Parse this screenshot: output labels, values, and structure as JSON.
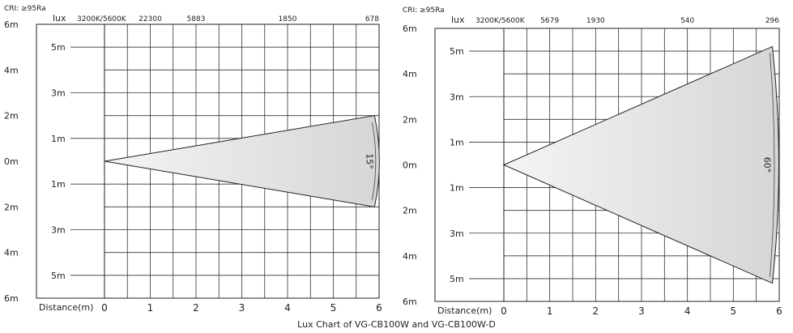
{
  "caption": "Lux Chart of VG-CB100W and VG-CB100W-D",
  "chart_data": [
    {
      "type": "area",
      "beam_angle": "15°",
      "cri_label": "CRI: ≥95Ra",
      "lux_unit": "lux",
      "color_temp_label": "3200K/5600K",
      "lux_values": [
        "22300",
        "5883",
        "1850",
        "678"
      ],
      "lux_positions": [
        1.0,
        2.0,
        4.0,
        6.0
      ],
      "y_tick_labels": [
        "6m",
        "4m",
        "2m",
        "0m",
        "2m",
        "4m",
        "6m"
      ],
      "inner_tick_labels": [
        "5m",
        "3m",
        "1m",
        "1m",
        "3m",
        "5m"
      ],
      "x_title": "Distance(m)",
      "x_ticks": [
        "0",
        "1",
        "2",
        "3",
        "4",
        "5",
        "6"
      ],
      "xlim": [
        0,
        6
      ],
      "ylim": [
        -6,
        6
      ],
      "beam": {
        "apex": [
          0,
          0
        ],
        "end_distance": 5.9,
        "half_width": 2.0
      },
      "fill_color": "#e4e4e4",
      "grid": true
    },
    {
      "type": "area",
      "beam_angle": "60°",
      "cri_label": "CRI: ≥95Ra",
      "lux_unit": "lux",
      "color_temp_label": "3200K/5600K",
      "lux_values": [
        "5679",
        "1930",
        "540",
        "296"
      ],
      "lux_positions": [
        1.0,
        2.0,
        4.0,
        6.0
      ],
      "y_tick_labels": [
        "6m",
        "4m",
        "2m",
        "0m",
        "2m",
        "4m",
        "6m"
      ],
      "inner_tick_labels": [
        "5m",
        "3m",
        "1m",
        "1m",
        "3m",
        "5m"
      ],
      "x_title": "Distance(m)",
      "x_ticks": [
        "0",
        "1",
        "2",
        "3",
        "4",
        "5",
        "6"
      ],
      "xlim": [
        0,
        6
      ],
      "ylim": [
        -6,
        6
      ],
      "beam": {
        "apex": [
          0,
          0
        ],
        "end_distance": 5.85,
        "half_width": 5.2
      },
      "fill_color": "#e4e4e4",
      "grid": true
    }
  ]
}
